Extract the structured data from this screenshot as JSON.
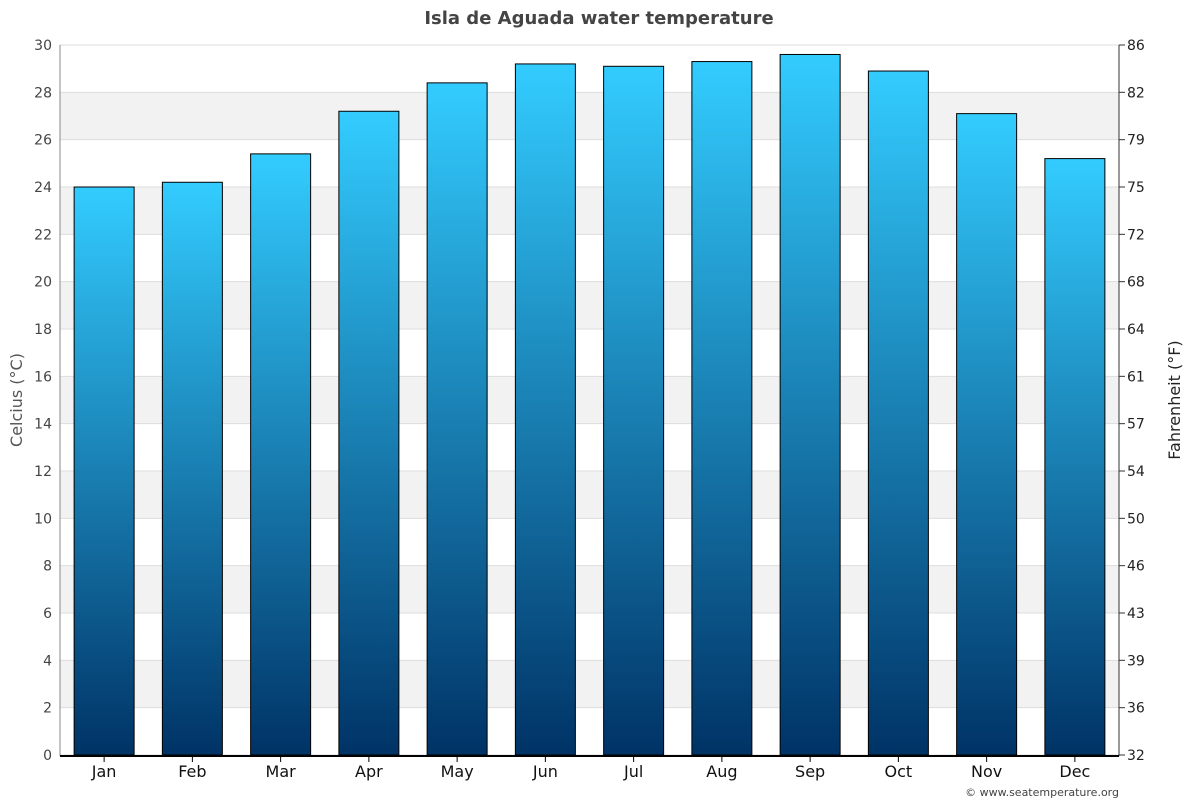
{
  "chart_data": {
    "type": "bar",
    "title": "Isla de Aguada water temperature",
    "ylabel": "Celcius (°C)",
    "y2label": "Fahrenheit (°F)",
    "xlabel": "",
    "categories": [
      "Jan",
      "Feb",
      "Mar",
      "Apr",
      "May",
      "Jun",
      "Jul",
      "Aug",
      "Sep",
      "Oct",
      "Nov",
      "Dec"
    ],
    "values": [
      24.0,
      24.2,
      25.4,
      27.2,
      28.4,
      29.2,
      29.1,
      29.3,
      29.6,
      28.9,
      27.1,
      25.2
    ],
    "ylim": [
      0,
      30
    ],
    "yticks": [
      0,
      2,
      4,
      6,
      8,
      10,
      12,
      14,
      16,
      18,
      20,
      22,
      24,
      26,
      28,
      30
    ],
    "y2ticks": [
      "32",
      "36",
      "39",
      "43",
      "46",
      "50",
      "54",
      "57",
      "61",
      "64",
      "68",
      "72",
      "75",
      "79",
      "82",
      "86"
    ],
    "grid": true,
    "legend": "none",
    "colors": {
      "bar_top": "#33ccff",
      "bar_bottom": "#003366",
      "band": "#f2f2f2",
      "title": "#444444"
    }
  },
  "credit": "© www.seatemperature.org"
}
